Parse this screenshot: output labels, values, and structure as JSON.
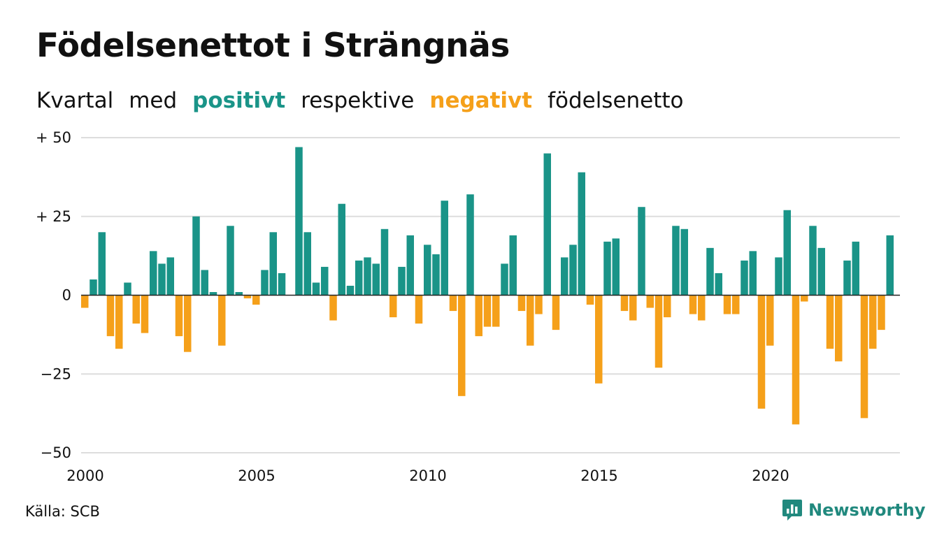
{
  "title": "Födelsenettot i Strängnäs",
  "subtitle": {
    "part1": "Kvartal",
    "part2": "med",
    "positive": "positivt",
    "part3": "respektive",
    "negative": "negativt",
    "part4": "födelsenetto"
  },
  "source": "Källa: SCB",
  "logo": {
    "text": "Newsworthy",
    "icon": "newsworthy-chart-icon"
  },
  "colors": {
    "positive": "#1a9488",
    "negative": "#f5a01a",
    "grid": "#dddddd",
    "text": "#111111",
    "logo": "#21897e"
  },
  "chart_data": {
    "type": "bar",
    "x_start": "2000 Q1",
    "periods_per_year": 4,
    "ylim": [
      -50,
      50
    ],
    "y_ticks": [
      50,
      25,
      0,
      -25,
      -50
    ],
    "y_tick_labels": [
      "+ 50",
      "+ 25",
      "0",
      "−25",
      "−50"
    ],
    "x_ticks": [
      2000,
      2005,
      2010,
      2015,
      2020
    ],
    "x_tick_labels": [
      "2000",
      "2005",
      "2010",
      "2015",
      "2020"
    ],
    "grid": true,
    "values": [
      -4,
      5,
      20,
      -13,
      -17,
      4,
      -9,
      -12,
      14,
      10,
      12,
      -13,
      -18,
      25,
      8,
      1,
      -16,
      22,
      1,
      -1,
      -3,
      8,
      20,
      7,
      null,
      47,
      20,
      4,
      9,
      -8,
      29,
      3,
      11,
      12,
      10,
      21,
      -7,
      9,
      19,
      -9,
      16,
      13,
      30,
      -5,
      -32,
      32,
      -13,
      -10,
      -10,
      10,
      19,
      -5,
      -16,
      -6,
      45,
      -11,
      12,
      16,
      39,
      -3,
      -28,
      17,
      18,
      -5,
      -8,
      28,
      -4,
      -23,
      -7,
      22,
      21,
      -6,
      -8,
      15,
      7,
      -6,
      -6,
      11,
      14,
      -36,
      -16,
      12,
      27,
      -41,
      -2,
      22,
      15,
      -17,
      -21,
      11,
      17,
      -39,
      -17,
      -11,
      19
    ]
  }
}
